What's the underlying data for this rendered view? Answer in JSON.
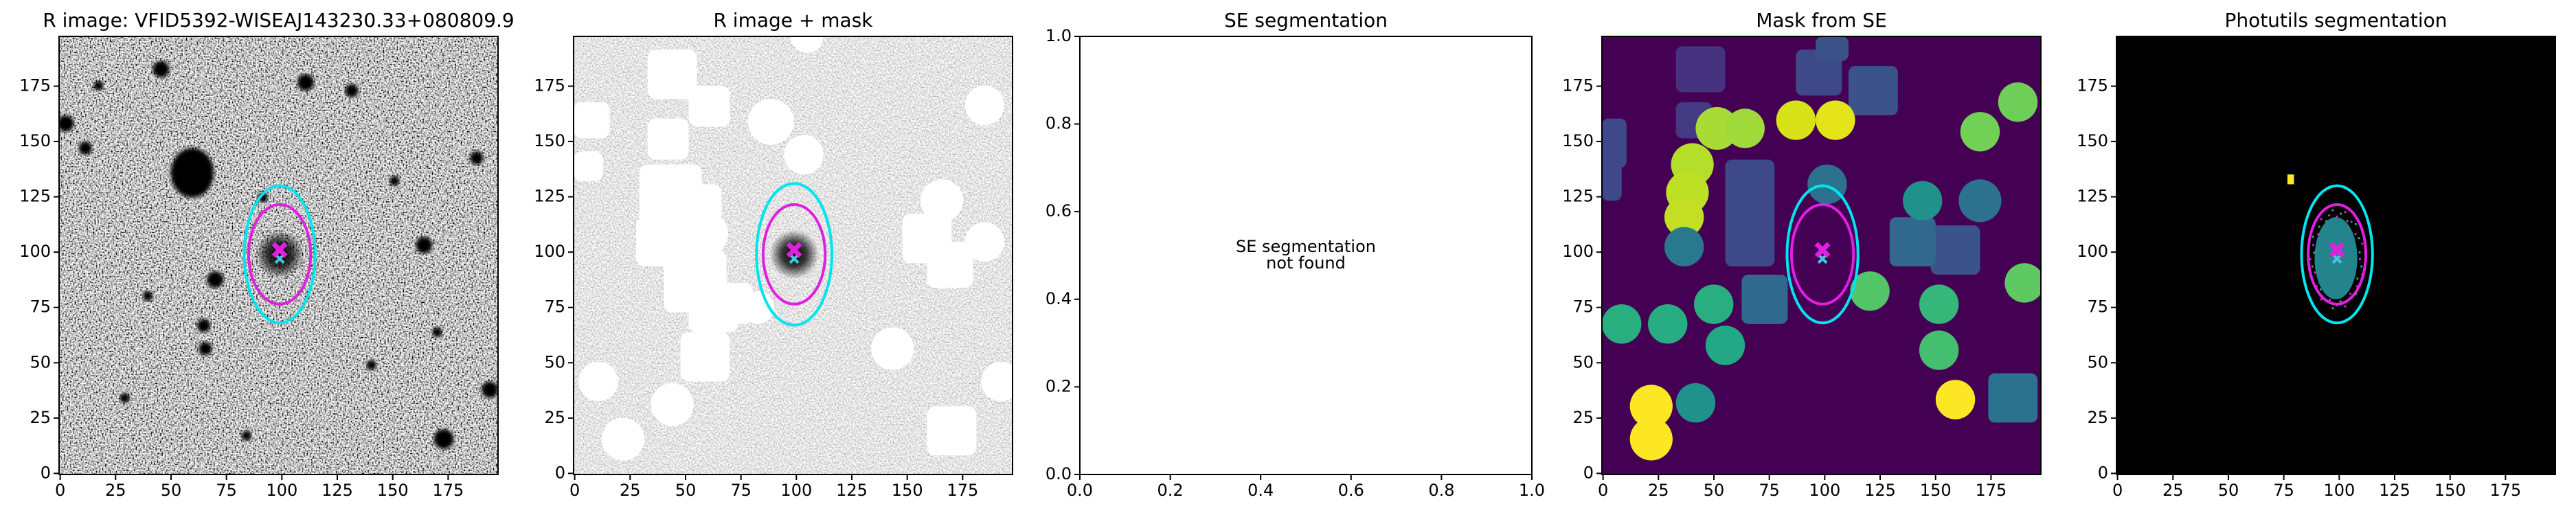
{
  "chart_data": [
    {
      "type": "image",
      "cmap": "gray",
      "title": "R image: VFID5392-WISEAJ143230.33+080809.9",
      "xlim": [
        -0.5,
        197.5
      ],
      "ylim": [
        -0.5,
        197.5
      ],
      "xticks": [
        0,
        25,
        50,
        75,
        100,
        125,
        150,
        175
      ],
      "yticks": [
        0,
        25,
        50,
        75,
        100,
        125,
        150,
        175
      ],
      "ellipses": [
        {
          "color": "#00e5ee",
          "cx": 99,
          "cy": 99,
          "width": 32,
          "height": 62
        },
        {
          "color": "#e020e0",
          "cx": 99,
          "cy": 99,
          "width": 28,
          "height": 45
        }
      ],
      "markers": [
        {
          "color": "#40c8e0",
          "x": 99,
          "y": 97
        },
        {
          "color": "#e020e0",
          "x": 99,
          "y": 101
        }
      ]
    },
    {
      "type": "image",
      "cmap": "gray_r",
      "title": "R image + mask",
      "xlim": [
        -0.5,
        197.5
      ],
      "ylim": [
        -0.5,
        197.5
      ],
      "xticks": [
        0,
        25,
        50,
        75,
        100,
        125,
        150,
        175
      ],
      "yticks": [
        0,
        25,
        50,
        75,
        100,
        125,
        150,
        175
      ],
      "ellipses": [
        {
          "color": "#00e5ee",
          "cx": 99,
          "cy": 99,
          "width": 34,
          "height": 64
        },
        {
          "color": "#e020e0",
          "cx": 99,
          "cy": 99,
          "width": 28,
          "height": 45
        }
      ],
      "markers": [
        {
          "color": "#40c8e0",
          "x": 99,
          "y": 97
        },
        {
          "color": "#e020e0",
          "x": 99,
          "y": 101
        }
      ]
    },
    {
      "type": "empty",
      "title": "SE segmentation",
      "xlim": [
        0,
        1
      ],
      "ylim": [
        0,
        1
      ],
      "xticks": [
        {
          "value": 0,
          "label": "0.0"
        },
        {
          "value": 0.2,
          "label": "0.2"
        },
        {
          "value": 0.4,
          "label": "0.4"
        },
        {
          "value": 0.6,
          "label": "0.6"
        },
        {
          "value": 0.8,
          "label": "0.8"
        },
        {
          "value": 1,
          "label": "1.0"
        }
      ],
      "yticks": [
        {
          "value": 0,
          "label": "0.0"
        },
        {
          "value": 0.2,
          "label": "0.2"
        },
        {
          "value": 0.4,
          "label": "0.4"
        },
        {
          "value": 0.6,
          "label": "0.6"
        },
        {
          "value": 0.8,
          "label": "0.8"
        },
        {
          "value": 1,
          "label": "1.0"
        }
      ],
      "annotation": [
        "SE segmentation",
        "not found"
      ]
    },
    {
      "type": "image",
      "cmap": "viridis",
      "title": "Mask from SE",
      "xlim": [
        -0.5,
        197.5
      ],
      "ylim": [
        -0.5,
        197.5
      ],
      "xticks": [
        0,
        25,
        50,
        75,
        100,
        125,
        150,
        175
      ],
      "yticks": [
        0,
        25,
        50,
        75,
        100,
        125,
        150,
        175
      ],
      "ellipses": [
        {
          "color": "#00e5ee",
          "cx": 99,
          "cy": 99,
          "width": 32,
          "height": 62
        },
        {
          "color": "#e020e0",
          "cx": 99,
          "cy": 99,
          "width": 28,
          "height": 45
        }
      ],
      "markers": [
        {
          "color": "#40c8e0",
          "x": 99,
          "y": 97
        },
        {
          "color": "#e020e0",
          "x": 99,
          "y": 101
        }
      ]
    },
    {
      "type": "image",
      "cmap": "segmentation",
      "title": "Photutils segmentation",
      "xlim": [
        -0.5,
        197.5
      ],
      "ylim": [
        -0.5,
        197.5
      ],
      "xticks": [
        0,
        25,
        50,
        75,
        100,
        125,
        150,
        175
      ],
      "yticks": [
        0,
        25,
        50,
        75,
        100,
        125,
        150,
        175
      ],
      "ellipses": [
        {
          "color": "#00e5ee",
          "cx": 99,
          "cy": 99,
          "width": 32,
          "height": 62
        },
        {
          "color": "#e020e0",
          "cx": 99,
          "cy": 99,
          "width": 26,
          "height": 45
        }
      ],
      "markers": [
        {
          "color": "#40c8e0",
          "x": 99,
          "y": 97
        },
        {
          "color": "#e020e0",
          "x": 99,
          "y": 101
        }
      ]
    }
  ]
}
